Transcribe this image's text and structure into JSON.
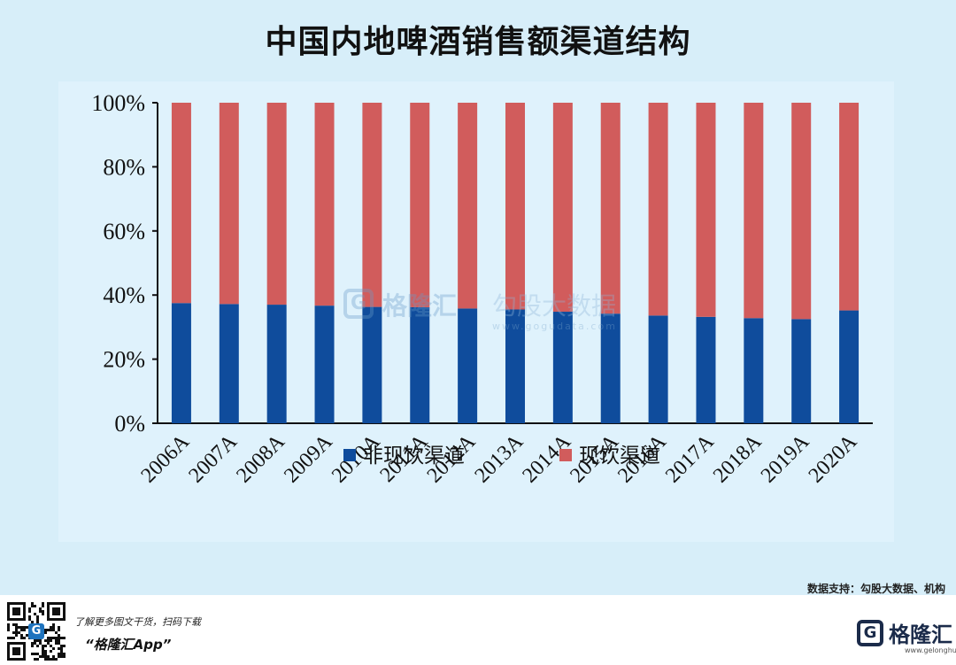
{
  "title": "中国内地啤酒销售额渠道结构",
  "chart_data": {
    "type": "bar",
    "stacked": true,
    "title": "中国内地啤酒销售额渠道结构",
    "categories": [
      "2006A",
      "2007A",
      "2008A",
      "2009A",
      "2010A",
      "2011A",
      "2012A",
      "2013A",
      "2014A",
      "2015A",
      "2016A",
      "2017A",
      "2018A",
      "2019A",
      "2020A"
    ],
    "series": [
      {
        "name": "非现饮渠道",
        "color": "#0f4c9c",
        "values": [
          37.5,
          37.2,
          37.0,
          36.7,
          36.3,
          36.2,
          35.8,
          35.5,
          34.8,
          34.2,
          33.6,
          33.2,
          32.8,
          32.5,
          35.2
        ]
      },
      {
        "name": "现饮渠道",
        "color": "#d15c5c",
        "values": [
          62.5,
          62.8,
          63.0,
          63.3,
          63.7,
          63.8,
          64.2,
          64.5,
          65.2,
          65.8,
          66.4,
          66.8,
          67.2,
          67.5,
          64.8
        ]
      }
    ],
    "yticks": [
      "0%",
      "20%",
      "40%",
      "60%",
      "80%",
      "100%"
    ],
    "ylim": [
      0,
      100
    ],
    "legend_position": "bottom"
  },
  "watermark": {
    "g": "G",
    "brand": "格隆汇",
    "brand2": "勾股大数据",
    "url": "www.gogudata.com"
  },
  "source": "数据支持：勾股大数据、机构",
  "footer": {
    "qr_center": "G",
    "promo_line1": "了解更多图文干货，扫码下载",
    "promo_line2": "“格隆汇App”",
    "logo_g": "G",
    "brand_name": "格隆汇",
    "brand_url": "www.gelonghui.com"
  }
}
